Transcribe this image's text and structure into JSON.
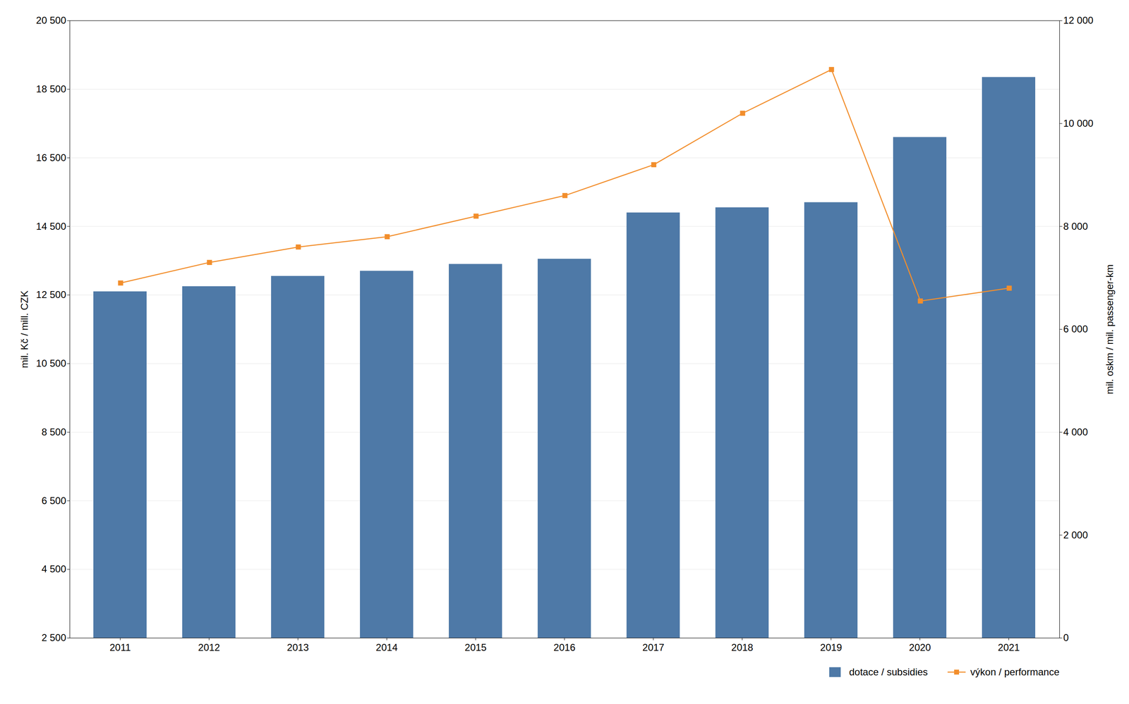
{
  "chart_data": {
    "type": "bar",
    "categories": [
      "2011",
      "2012",
      "2013",
      "2014",
      "2015",
      "2016",
      "2017",
      "2018",
      "2019",
      "2020",
      "2021"
    ],
    "series": [
      {
        "name": "dotace / subsidies",
        "type": "bar",
        "values": [
          12600,
          12750,
          13050,
          13200,
          13400,
          13550,
          14900,
          15050,
          15200,
          17100,
          18850
        ]
      },
      {
        "name": "výkon / performance",
        "type": "line",
        "axis": "y2",
        "marker": "square",
        "values": [
          6900,
          7300,
          7600,
          7800,
          8200,
          8600,
          9200,
          10200,
          11050,
          6550,
          6800
        ]
      }
    ],
    "ylabel": "mil. Kč / mill. CZK",
    "y2label": "mil. oskm / mil. passenger-km",
    "ylim": [
      2500,
      20500
    ],
    "yticks": [
      {
        "value": 2500,
        "label": "2 500"
      },
      {
        "value": 4500,
        "label": "4 500"
      },
      {
        "value": 6500,
        "label": "6 500"
      },
      {
        "value": 8500,
        "label": "8 500"
      },
      {
        "value": 10500,
        "label": "10 500"
      },
      {
        "value": 12500,
        "label": "12 500"
      },
      {
        "value": 14500,
        "label": "14 500"
      },
      {
        "value": 16500,
        "label": "16 500"
      },
      {
        "value": 18500,
        "label": "18 500"
      },
      {
        "value": 20500,
        "label": "20 500"
      }
    ],
    "y2lim": [
      0,
      12000
    ],
    "y2ticks": [
      0,
      {
        "value": 2000,
        "label": "2 000"
      },
      {
        "value": 4000,
        "label": "4 000"
      },
      {
        "value": 6000,
        "label": "6 000"
      },
      {
        "value": 8000,
        "label": "8 000"
      },
      {
        "value": 10000,
        "label": "10 000"
      },
      {
        "value": 12000,
        "label": "12 000"
      }
    ],
    "grid": true,
    "legend": "lower right"
  }
}
